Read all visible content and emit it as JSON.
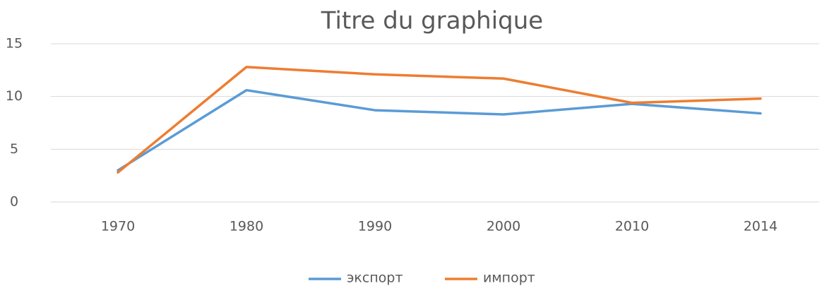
{
  "chart_data": {
    "type": "line",
    "title": "Titre du graphique",
    "categories": [
      "1970",
      "1980",
      "1990",
      "2000",
      "2010",
      "2014"
    ],
    "series": [
      {
        "name": "экспорт",
        "color": "#5b9bd5",
        "values": [
          3.0,
          10.6,
          8.7,
          8.3,
          9.3,
          8.4
        ]
      },
      {
        "name": "импорт",
        "color": "#ed7d31",
        "values": [
          2.8,
          12.8,
          12.1,
          11.7,
          9.4,
          9.8
        ]
      }
    ],
    "ylim": [
      0,
      15
    ],
    "yticks": [
      0,
      5,
      10,
      15
    ],
    "grid": true,
    "legend": "bottom"
  }
}
